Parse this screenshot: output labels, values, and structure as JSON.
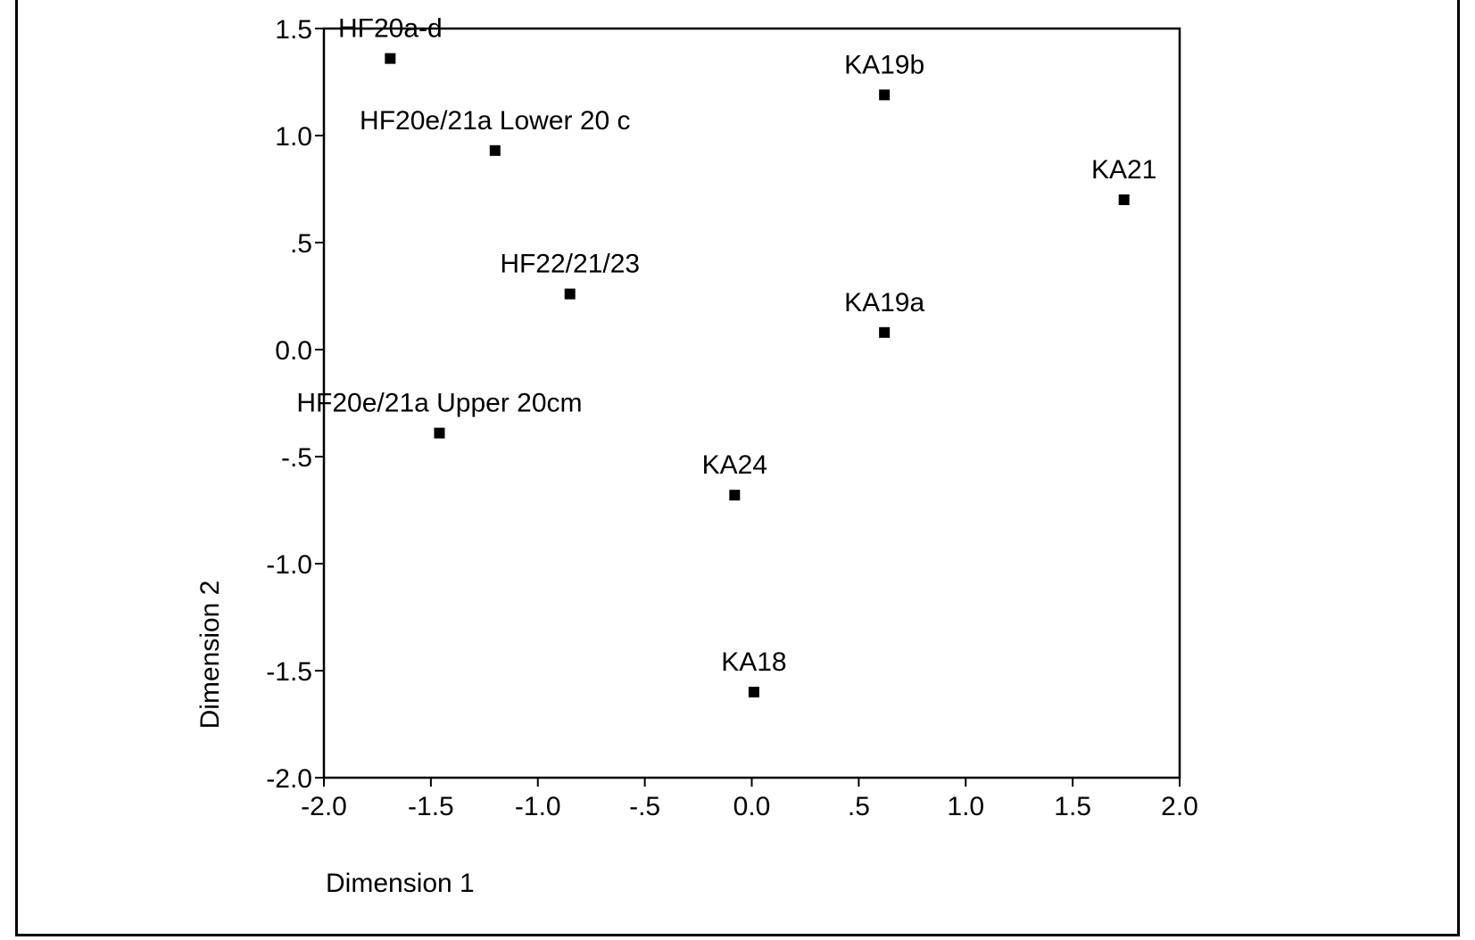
{
  "chart_data": {
    "type": "scatter",
    "title": "",
    "xlabel": "Dimension 1",
    "ylabel": "Dimension 2",
    "xlim": [
      -2.0,
      2.0
    ],
    "ylim": [
      -2.0,
      1.5
    ],
    "x_ticks": [
      -2.0,
      -1.5,
      -1.0,
      -0.5,
      0.0,
      0.5,
      1.0,
      1.5,
      2.0
    ],
    "x_tick_labels": [
      "-2.0",
      "-1.5",
      "-1.0",
      "-.5",
      "0.0",
      ".5",
      "1.0",
      "1.5",
      "2.0"
    ],
    "y_ticks": [
      1.5,
      1.0,
      0.5,
      0.0,
      -0.5,
      -1.0,
      -1.5,
      -2.0
    ],
    "y_tick_labels": [
      "1.5",
      "1.0",
      ".5",
      "0.0",
      "-.5",
      "-1.0",
      "-1.5",
      "-2.0"
    ],
    "grid": false,
    "marker_color": "#000000",
    "points": [
      {
        "label": "HF20a-d",
        "x": -1.69,
        "y": 1.36
      },
      {
        "label": "HF20e/21a Lower 20 c",
        "x": -1.2,
        "y": 0.93
      },
      {
        "label": "HF22/21/23",
        "x": -0.85,
        "y": 0.26
      },
      {
        "label": "HF20e/21a Upper 20cm",
        "x": -1.46,
        "y": -0.39
      },
      {
        "label": "KA19b",
        "x": 0.62,
        "y": 1.19
      },
      {
        "label": "KA21",
        "x": 1.74,
        "y": 0.7
      },
      {
        "label": "KA19a",
        "x": 0.62,
        "y": 0.08
      },
      {
        "label": "KA24",
        "x": -0.08,
        "y": -0.68
      },
      {
        "label": "KA18",
        "x": 0.01,
        "y": -1.6
      }
    ]
  }
}
